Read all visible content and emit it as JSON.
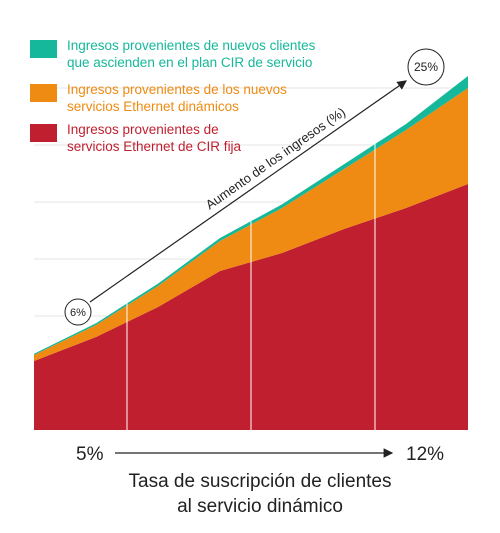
{
  "chart_data": {
    "type": "area",
    "stacked": true,
    "x": [
      5,
      6,
      7,
      8,
      9,
      10,
      11,
      12
    ],
    "x_start_label": "5%",
    "x_end_label": "12%",
    "x_title_lines": [
      "Tasa de suscripción de clientes",
      "al servicio dinámico"
    ],
    "series": [
      {
        "name": "Ingresos provenientes de servicios Ethernet de CIR fija",
        "name_lines": [
          "Ingresos provenientes de",
          "servicios Ethernet de CIR fija"
        ],
        "color": "#c01f2f",
        "values": [
          11.5,
          15.5,
          20.5,
          26.5,
          29.5,
          33.5,
          37.0,
          41.0
        ]
      },
      {
        "name": "Ingresos provenientes de los nuevos servicios Ethernet dinámicos",
        "name_lines": [
          "Ingresos provenientes de los nuevos",
          "servicios Ethernet dinámicos"
        ],
        "color": "#ef8a12",
        "values": [
          1.0,
          2.0,
          3.5,
          5.0,
          7.5,
          10.0,
          13.0,
          16.0
        ]
      },
      {
        "name": "Ingresos provenientes de nuevos clientes que ascienden en el plan CIR de servicio",
        "name_lines": [
          "Ingresos provenientes de nuevos clientes",
          "que ascienden en el plan CIR de servicio"
        ],
        "color": "#15b89a",
        "values": [
          0.2,
          0.3,
          0.4,
          0.5,
          0.6,
          0.8,
          1.0,
          2.0
        ]
      }
    ],
    "ylim": [
      0,
      65
    ],
    "grid": true,
    "vertical_separators_at": [
      6.5,
      8.5,
      10.5
    ],
    "trend_annotation": {
      "label": "Aumento de los ingresos (%)",
      "start_value": "6%",
      "end_value": "25%"
    },
    "legend_placement": "top-left"
  }
}
